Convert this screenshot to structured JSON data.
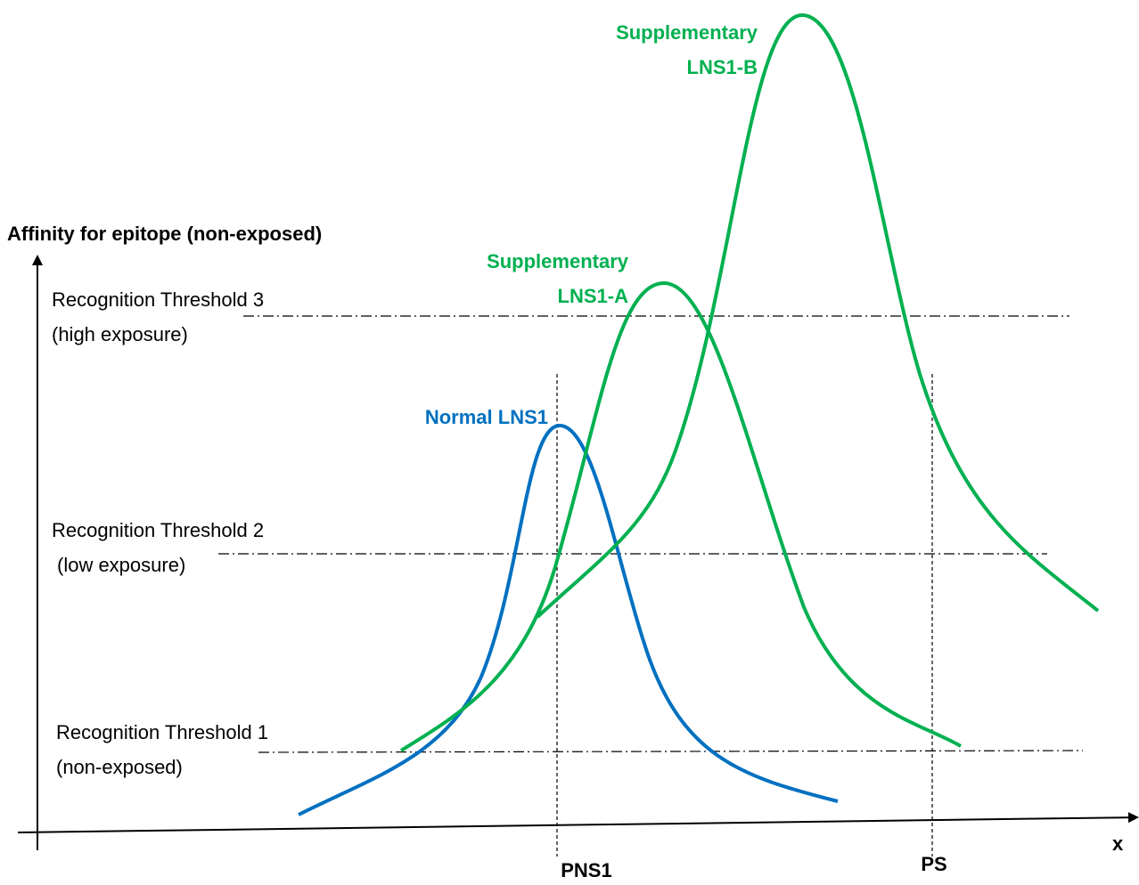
{
  "y_axis_label": "Affinity for epitope (non-exposed)",
  "x_axis_label": "x",
  "thresholds": [
    {
      "label": "Recognition Threshold 1",
      "note": "(non-exposed)"
    },
    {
      "label": "Recognition Threshold 2",
      "note": "(low exposure)"
    },
    {
      "label": "Recognition Threshold 3",
      "note": "(high exposure)"
    }
  ],
  "curves": [
    {
      "label": "Normal LNS1"
    },
    {
      "label": "Supplementary",
      "sublabel": "LNS1-A"
    },
    {
      "label": "Supplementary",
      "sublabel": "LNS1-B"
    }
  ],
  "markers": [
    "PNS1",
    "PS"
  ]
}
